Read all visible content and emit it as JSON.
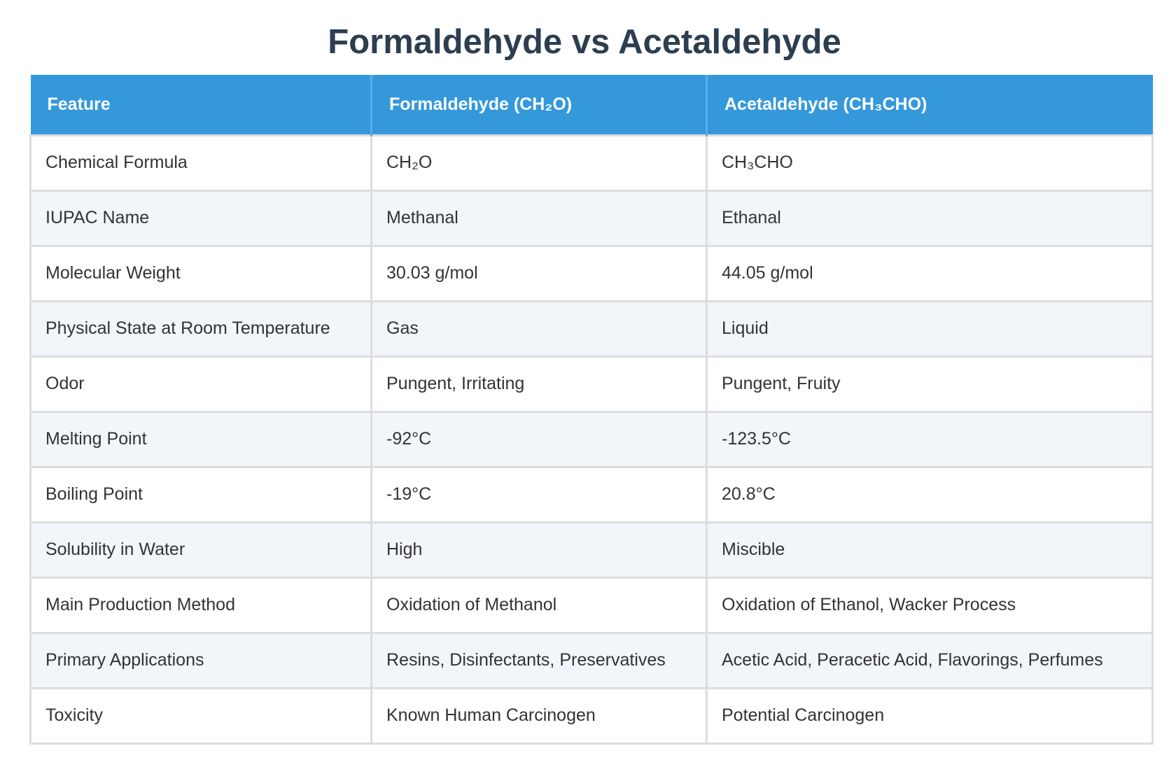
{
  "title": "Formaldehyde vs Acetaldehyde",
  "table": {
    "headers": [
      "Feature",
      "Formaldehyde (CH₂O)",
      "Acetaldehyde (CH₃CHO)"
    ],
    "rows": [
      [
        "Chemical Formula",
        "CH₂O",
        "CH₃CHO"
      ],
      [
        "IUPAC Name",
        "Methanal",
        "Ethanal"
      ],
      [
        "Molecular Weight",
        "30.03 g/mol",
        "44.05 g/mol"
      ],
      [
        "Physical State at Room Temperature",
        "Gas",
        "Liquid"
      ],
      [
        "Odor",
        "Pungent, Irritating",
        "Pungent, Fruity"
      ],
      [
        "Melting Point",
        "-92°C",
        "-123.5°C"
      ],
      [
        "Boiling Point",
        "-19°C",
        "20.8°C"
      ],
      [
        "Solubility in Water",
        "High",
        "Miscible"
      ],
      [
        "Main Production Method",
        "Oxidation of Methanol",
        "Oxidation of Ethanol, Wacker Process"
      ],
      [
        "Primary Applications",
        "Resins, Disinfectants, Preservatives",
        "Acetic Acid, Peracetic Acid, Flavorings, Perfumes"
      ],
      [
        "Toxicity",
        "Known Human Carcinogen",
        "Potential Carcinogen"
      ]
    ]
  },
  "colors": {
    "header_bg": "#3498db",
    "title": "#2c3e50",
    "alt_row": "#f2f5f9",
    "border": "#dddddd"
  }
}
